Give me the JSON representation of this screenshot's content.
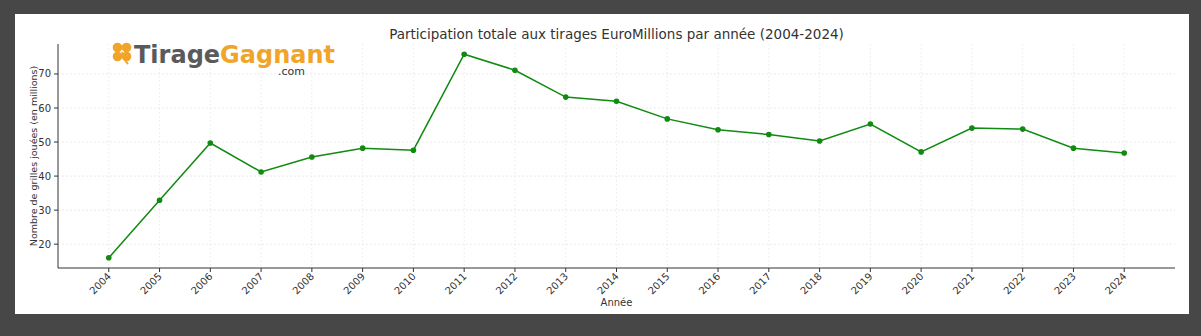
{
  "chart_data": {
    "type": "line",
    "title": "Participation totale aux tirages EuroMillions par année (2004-2024)",
    "x_label": "Année",
    "y_label": "Nombre de grilles jouées (en millions)",
    "x": [
      2004,
      2005,
      2006,
      2007,
      2008,
      2009,
      2010,
      2011,
      2012,
      2013,
      2014,
      2015,
      2016,
      2017,
      2018,
      2019,
      2020,
      2021,
      2022,
      2023,
      2024
    ],
    "values": [
      16.0,
      32.9,
      49.7,
      41.2,
      45.6,
      48.2,
      47.6,
      75.8,
      71.1,
      63.2,
      62.0,
      56.8,
      53.6,
      52.2,
      50.3,
      55.3,
      47.1,
      54.1,
      53.8,
      48.2,
      46.8
    ],
    "color": "#108a10",
    "marker": "circle",
    "line_style": "solid",
    "xlim": [
      2003,
      2025
    ],
    "xticks": [
      2004,
      2005,
      2006,
      2007,
      2008,
      2009,
      2010,
      2011,
      2012,
      2013,
      2014,
      2015,
      2016,
      2017,
      2018,
      2019,
      2020,
      2021,
      2022,
      2023,
      2024
    ],
    "ylim": [
      13.0,
      78.8
    ],
    "yticks": [
      20,
      30,
      40,
      50,
      60,
      70
    ],
    "grid": true
  },
  "logo": {
    "brand_part1": "Tirage",
    "brand_part2": "Gagnant",
    "domain": ".com"
  }
}
